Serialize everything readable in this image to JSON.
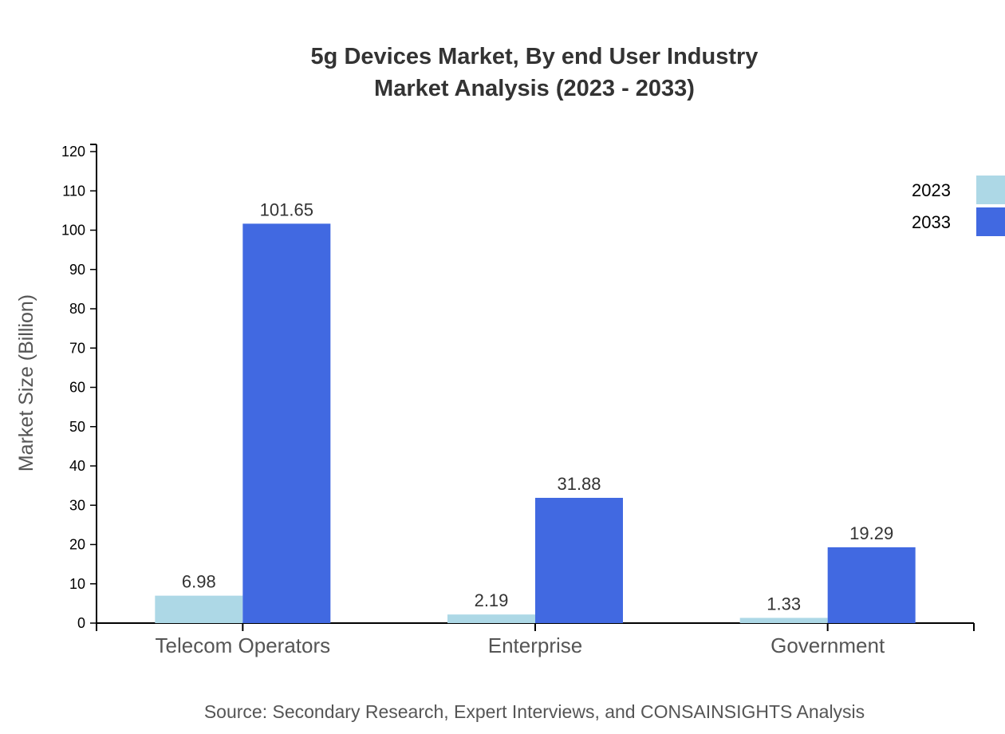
{
  "chart_data": {
    "type": "bar",
    "title": [
      "5g Devices Market, By end User Industry",
      "Market Analysis (2023 - 2033)"
    ],
    "ylabel": "Market Size (Billion)",
    "xlabel": "",
    "categories": [
      "Telecom Operators",
      "Enterprise",
      "Government"
    ],
    "series": [
      {
        "name": "2023",
        "values": [
          6.98,
          2.19,
          1.33
        ],
        "color": "#add8e6"
      },
      {
        "name": "2033",
        "values": [
          101.65,
          31.88,
          19.29
        ],
        "color": "#4169e1"
      }
    ],
    "ylim": [
      0,
      120
    ],
    "yticks": [
      0,
      10,
      20,
      30,
      40,
      50,
      60,
      70,
      80,
      90,
      100,
      110,
      120
    ],
    "grid": false,
    "legend": "top-right",
    "source": "Source: Secondary Research, Expert Interviews, and CONSAINSIGHTS Analysis"
  }
}
